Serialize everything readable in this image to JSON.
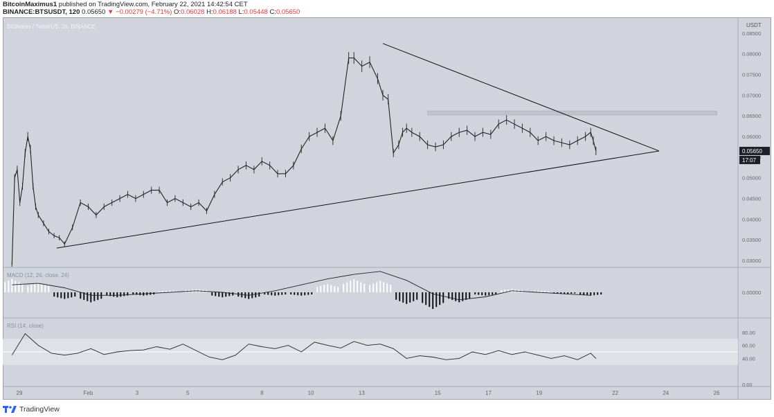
{
  "header": {
    "author": "BitcoinMaximus1",
    "published": "published on TradingView.com, February 22, 2021 14:42:54 CET",
    "symbol_line": "BINANCE:BTSUSDT, 120",
    "last": "0.05650",
    "arrow": "▼",
    "change": "−0.00279 (−4.71%)",
    "o_label": "O:",
    "o_value": "0.06028",
    "h_label": "H:",
    "h_value": "0.06188",
    "l_label": "L:",
    "l_value": "0.05448",
    "c_label": "C:",
    "c_value": "0.05650"
  },
  "footer": {
    "brand": "TradingView"
  },
  "colors": {
    "background": "#d1d4dc",
    "price_line": "#222222",
    "price_tag": "#1e2028",
    "resistance_zone": "#bfc2cc"
  },
  "chart_data": {
    "type": "line",
    "pane_label": "BitShares / TetherUS, 2h, BINANCE",
    "currency": "USDT",
    "x_tick_labels": [
      "29",
      "Feb",
      "3",
      "5",
      "8",
      "10",
      "13",
      "15",
      "17",
      "19",
      "22",
      "24",
      "26"
    ],
    "y_tick_labels": [
      "0.08500",
      "0.08000",
      "0.07500",
      "0.07000",
      "0.06500",
      "0.06000",
      "0.05500",
      "0.05000",
      "0.04500",
      "0.04000",
      "0.03500",
      "0.03000"
    ],
    "ylim": [
      0.0285,
      0.0875
    ],
    "last_price_tag": "0.05650",
    "countdown": "17:07",
    "price_series": {
      "name": "BTSUSDT",
      "x": [
        0,
        0.1,
        0.2,
        0.3,
        0.4,
        0.5,
        0.6,
        0.7,
        0.8,
        0.9,
        1.0,
        1.2,
        1.4,
        1.6,
        1.8,
        2.0,
        2.3,
        2.6,
        2.9,
        3.2,
        3.5,
        3.8,
        4.1,
        4.4,
        4.7,
        5.0,
        5.3,
        5.6,
        5.9,
        6.2,
        6.5,
        6.8,
        7.1,
        7.4,
        7.7,
        8.0,
        8.3,
        8.6,
        8.9,
        9.2,
        9.5,
        9.8,
        10.1,
        10.4,
        10.7,
        11.0,
        11.3,
        11.6,
        11.9,
        12.2,
        12.5,
        12.8,
        13.0,
        13.3,
        13.6,
        13.9,
        14.1,
        14.3,
        14.5,
        14.7,
        14.85,
        15.0,
        15.2,
        15.5,
        15.8,
        16.1,
        16.4,
        16.7,
        17.0,
        17.3,
        17.6,
        17.9,
        18.2,
        18.5,
        18.8,
        19.1,
        19.4,
        19.7,
        20.0,
        20.3,
        20.6,
        20.9,
        21.2,
        21.5,
        21.8,
        22.0,
        22.1,
        22.2
      ],
      "y": [
        0.029,
        0.05,
        0.052,
        0.044,
        0.048,
        0.056,
        0.06,
        0.057,
        0.048,
        0.043,
        0.041,
        0.039,
        0.037,
        0.036,
        0.0355,
        0.034,
        0.038,
        0.044,
        0.043,
        0.041,
        0.043,
        0.044,
        0.045,
        0.046,
        0.045,
        0.046,
        0.047,
        0.047,
        0.044,
        0.045,
        0.044,
        0.043,
        0.044,
        0.042,
        0.046,
        0.049,
        0.05,
        0.052,
        0.053,
        0.052,
        0.054,
        0.053,
        0.051,
        0.051,
        0.053,
        0.057,
        0.06,
        0.061,
        0.062,
        0.059,
        0.065,
        0.079,
        0.079,
        0.077,
        0.078,
        0.074,
        0.07,
        0.069,
        0.056,
        0.058,
        0.061,
        0.062,
        0.061,
        0.06,
        0.058,
        0.0575,
        0.058,
        0.06,
        0.061,
        0.0615,
        0.06,
        0.061,
        0.0605,
        0.063,
        0.064,
        0.063,
        0.062,
        0.061,
        0.059,
        0.06,
        0.059,
        0.0585,
        0.058,
        0.059,
        0.06,
        0.061,
        0.059,
        0.0565
      ]
    },
    "triangle": {
      "upper_line": {
        "x": [
          14.1,
          24.6
        ],
        "y": [
          0.0825,
          0.0565
        ]
      },
      "lower_line": {
        "x": [
          1.7,
          24.6
        ],
        "y": [
          0.033,
          0.0565
        ]
      },
      "resistance_zone": {
        "x": [
          15.8,
          26.8
        ],
        "y": [
          0.0652,
          0.0662
        ]
      }
    },
    "macd": {
      "label": "MACD (12, 26, close, 24)",
      "zero_tick": "0.00000",
      "x": [
        0,
        1,
        2,
        3,
        4,
        5,
        6,
        7,
        8,
        9,
        10,
        11,
        12,
        13,
        14,
        15,
        16,
        17,
        18,
        19,
        20,
        21,
        22
      ],
      "hist": [
        0.8,
        0.6,
        -0.4,
        -0.6,
        -0.3,
        -0.2,
        0.1,
        0.2,
        -0.3,
        -0.4,
        -0.2,
        -0.2,
        0.5,
        0.8,
        0.7,
        -0.7,
        -1.0,
        -0.6,
        -0.2,
        0.2,
        0.1,
        -0.1,
        -0.2
      ],
      "signal": [
        0.5,
        0.6,
        0.3,
        -0.2,
        -0.2,
        -0.1,
        0.0,
        0.1,
        0.0,
        -0.2,
        0.1,
        0.5,
        0.9,
        1.2,
        1.4,
        0.8,
        -0.1,
        -0.5,
        -0.3,
        0.1,
        0.0,
        -0.1,
        -0.2
      ]
    },
    "rsi": {
      "label": "RSI (14, close)",
      "y_tick_labels": [
        "80.00",
        "60.00",
        "40.00",
        "0.00"
      ],
      "upper_band": 70,
      "lower_band": 30,
      "x": [
        0,
        0.5,
        1,
        1.5,
        2,
        2.5,
        3,
        3.5,
        4,
        4.5,
        5,
        5.5,
        6,
        6.5,
        7,
        7.5,
        8,
        8.5,
        9,
        9.5,
        10,
        10.5,
        11,
        11.5,
        12,
        12.5,
        13,
        13.5,
        14,
        14.5,
        15,
        15.5,
        16,
        16.5,
        17,
        17.5,
        18,
        18.5,
        19,
        19.5,
        20,
        20.5,
        21,
        21.5,
        22,
        22.2
      ],
      "y": [
        45,
        78,
        60,
        48,
        45,
        48,
        55,
        46,
        50,
        52,
        53,
        58,
        54,
        62,
        52,
        42,
        38,
        45,
        62,
        58,
        55,
        60,
        50,
        65,
        60,
        56,
        66,
        60,
        62,
        55,
        40,
        44,
        42,
        38,
        40,
        50,
        46,
        52,
        46,
        50,
        45,
        40,
        44,
        38,
        48,
        40
      ]
    }
  }
}
